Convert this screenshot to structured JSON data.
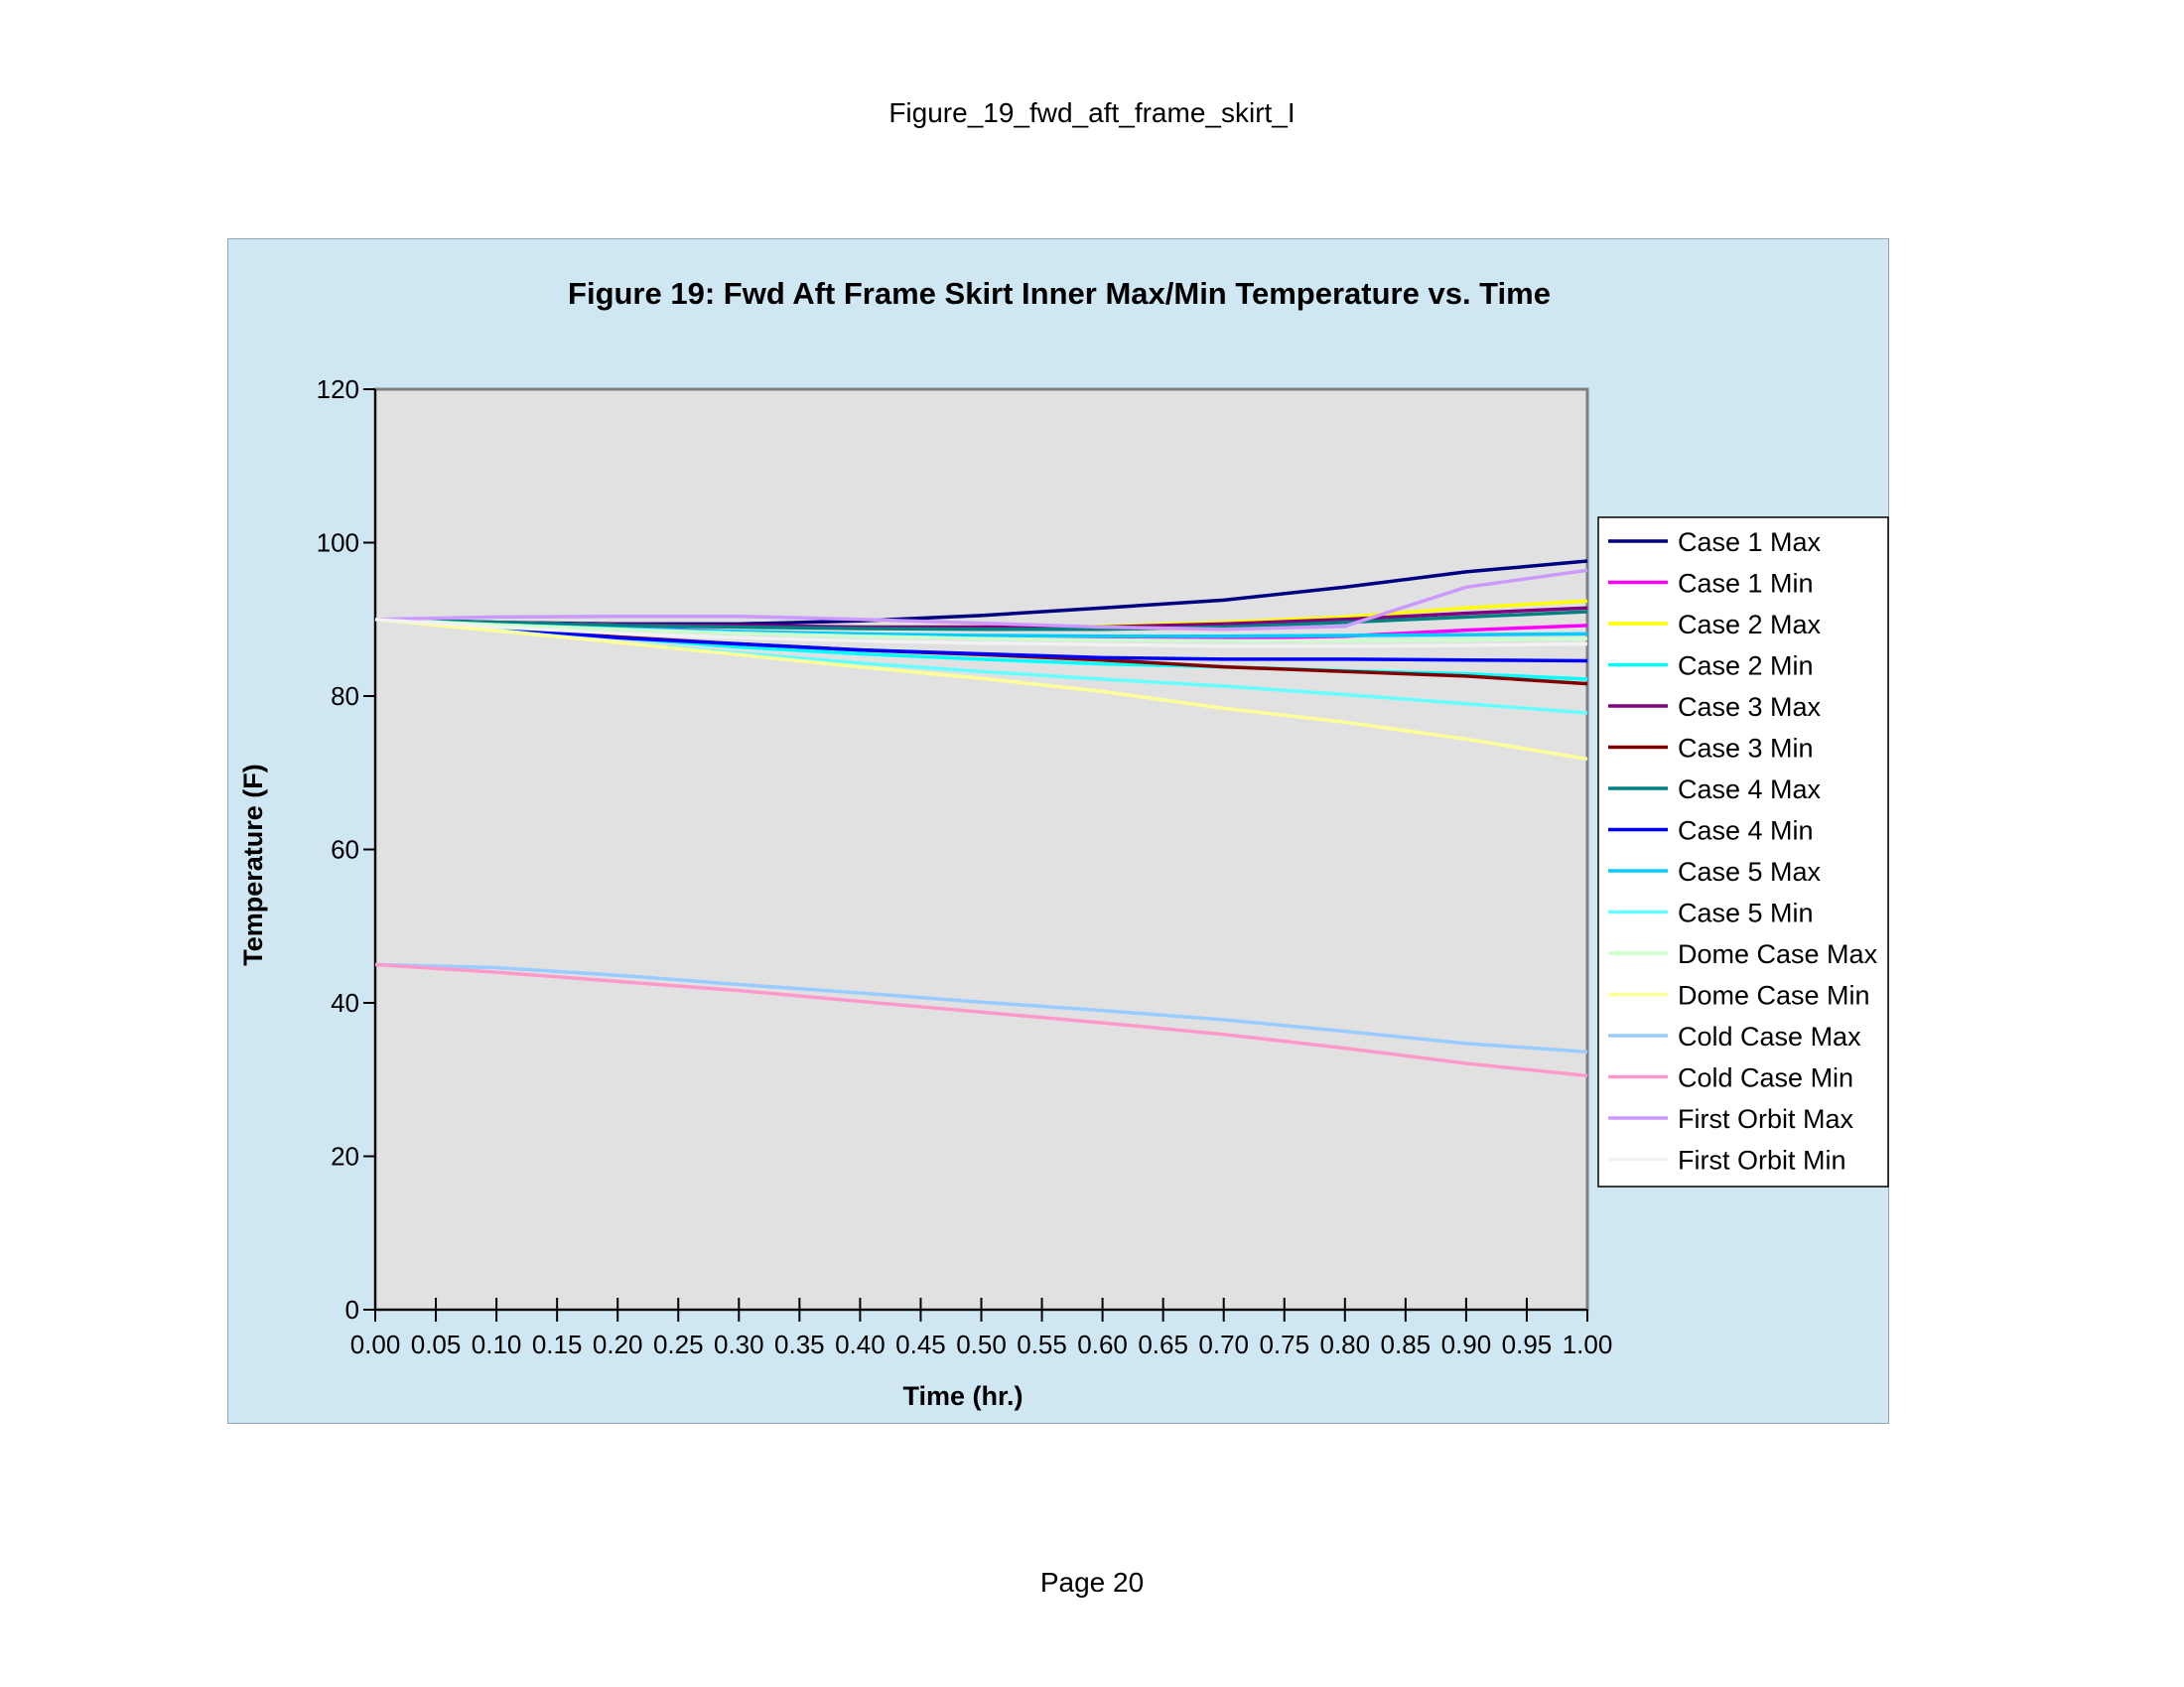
{
  "page": {
    "header": "Figure_19_fwd_aft_frame_skirt_I",
    "footer": "Page 20"
  },
  "chart_data": {
    "type": "line",
    "title": "Figure 19: Fwd Aft Frame Skirt Inner Max/Min Temperature vs. Time",
    "xlabel": "Time (hr.)",
    "ylabel": "Temperature (F)",
    "xlim": [
      0,
      1
    ],
    "ylim": [
      0,
      120
    ],
    "x_ticks": [
      "0.00",
      "0.05",
      "0.10",
      "0.15",
      "0.20",
      "0.25",
      "0.30",
      "0.35",
      "0.40",
      "0.45",
      "0.50",
      "0.55",
      "0.60",
      "0.65",
      "0.70",
      "0.75",
      "0.80",
      "0.85",
      "0.90",
      "0.95",
      "1.00"
    ],
    "y_ticks": [
      0,
      20,
      40,
      60,
      80,
      100,
      120
    ],
    "grid": false,
    "legend_position": "right",
    "background": "#cfe6f3",
    "plot_background": "#e1e1e1",
    "x": [
      0.0,
      0.1,
      0.2,
      0.3,
      0.4,
      0.5,
      0.6,
      0.7,
      0.8,
      0.9,
      1.0
    ],
    "series": [
      {
        "name": "Case 1 Max",
        "color": "#000080",
        "values": [
          90,
          89.6,
          89.4,
          89.4,
          89.8,
          90.5,
          91.5,
          92.5,
          94.2,
          96.2,
          97.6
        ]
      },
      {
        "name": "Case 1 Min",
        "color": "#ff00ff",
        "values": [
          90,
          89.4,
          88.9,
          88.4,
          88.0,
          87.7,
          87.5,
          87.5,
          87.8,
          88.6,
          89.2
        ]
      },
      {
        "name": "Case 2 Max",
        "color": "#ffff00",
        "values": [
          90,
          89.6,
          89.3,
          89.1,
          89.0,
          89.0,
          89.1,
          89.6,
          90.3,
          91.5,
          92.4
        ]
      },
      {
        "name": "Case 2 Min",
        "color": "#00ffff",
        "values": [
          90,
          88.9,
          87.6,
          86.4,
          85.5,
          84.8,
          84.2,
          83.8,
          83.3,
          82.9,
          82.2
        ]
      },
      {
        "name": "Case 3 Max",
        "color": "#800080",
        "values": [
          90,
          89.6,
          89.3,
          89.2,
          89.0,
          89.0,
          89.0,
          89.4,
          90.0,
          90.8,
          91.5
        ]
      },
      {
        "name": "Case 3 Min",
        "color": "#800000",
        "values": [
          90,
          88.9,
          87.7,
          86.8,
          86.0,
          85.4,
          84.7,
          83.8,
          83.2,
          82.6,
          81.6
        ]
      },
      {
        "name": "Case 4 Max",
        "color": "#008080",
        "values": [
          90,
          89.6,
          89.2,
          89.0,
          88.8,
          88.7,
          88.7,
          89.0,
          89.6,
          90.3,
          91.0
        ]
      },
      {
        "name": "Case 4 Min",
        "color": "#0000ff",
        "values": [
          90,
          88.9,
          87.6,
          86.8,
          86.0,
          85.5,
          85.0,
          84.8,
          84.8,
          84.7,
          84.6
        ]
      },
      {
        "name": "Case 5 Max",
        "color": "#00ccff",
        "values": [
          90,
          89.3,
          88.8,
          88.4,
          88.1,
          87.9,
          87.8,
          87.8,
          87.9,
          88.0,
          88.1
        ]
      },
      {
        "name": "Case 5 Min",
        "color": "#66ffff",
        "values": [
          90,
          88.6,
          87.0,
          85.6,
          84.3,
          83.2,
          82.2,
          81.3,
          80.2,
          79.0,
          77.8
        ]
      },
      {
        "name": "Dome Case Max",
        "color": "#ccffcc",
        "values": [
          90,
          89.3,
          88.7,
          88.2,
          87.8,
          87.5,
          87.3,
          87.2,
          87.2,
          87.3,
          87.5
        ]
      },
      {
        "name": "Dome Case Min",
        "color": "#ffff99",
        "values": [
          90,
          88.5,
          87.0,
          85.4,
          83.8,
          82.3,
          80.6,
          78.4,
          76.6,
          74.4,
          71.8
        ]
      },
      {
        "name": "Cold Case Max",
        "color": "#99ccff",
        "values": [
          45,
          44.6,
          43.6,
          42.4,
          41.3,
          40.1,
          39.0,
          37.8,
          36.3,
          34.7,
          33.6
        ]
      },
      {
        "name": "Cold Case Min",
        "color": "#ff99cc",
        "values": [
          45,
          44.0,
          42.8,
          41.6,
          40.2,
          38.8,
          37.4,
          35.9,
          34.1,
          32.1,
          30.5
        ]
      },
      {
        "name": "First Orbit Max",
        "color": "#cc99ff",
        "values": [
          90,
          90.3,
          90.4,
          90.4,
          90.0,
          89.5,
          89.0,
          88.7,
          89.1,
          94.2,
          96.4
        ]
      },
      {
        "name": "First Orbit Min",
        "color": "#f2f2f2",
        "values": [
          90,
          89.0,
          88.2,
          87.6,
          87.2,
          86.9,
          86.7,
          86.5,
          86.5,
          86.6,
          86.8
        ]
      }
    ]
  }
}
